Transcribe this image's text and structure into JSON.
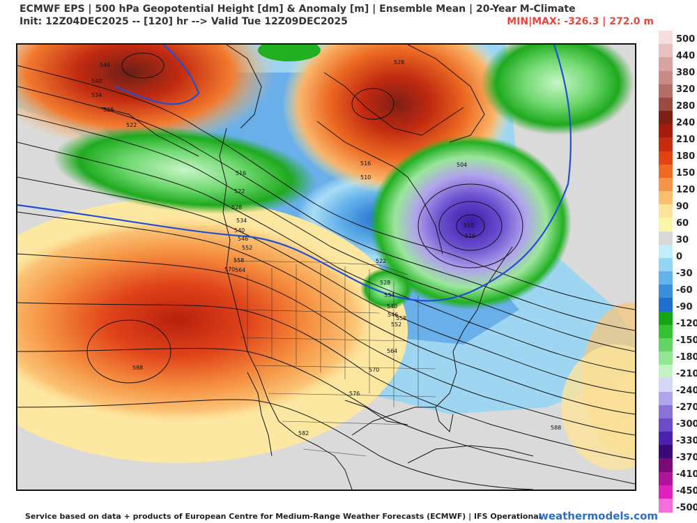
{
  "header": {
    "title": "ECMWF EPS | 500 hPa Geopotential Height [dm] & Anomaly [m] | Ensemble Mean | 20-Year M-Climate",
    "subtitle": "Init: 12Z04DEC2025 -- [120] hr --> Valid Tue 12Z09DEC2025",
    "minmax": "MIN|MAX: -326.3 | 272.0 m"
  },
  "colorbar": {
    "labels": [
      "500",
      "440",
      "380",
      "320",
      "280",
      "240",
      "210",
      "180",
      "150",
      "120",
      "90",
      "60",
      "30",
      "0",
      "-30",
      "-60",
      "-90",
      "-120",
      "-150",
      "-180",
      "-210",
      "-240",
      "-270",
      "-300",
      "-330",
      "-370",
      "-410",
      "-450",
      "-500"
    ],
    "colors": [
      "#f7dede",
      "#e9c0c0",
      "#d8a3a0",
      "#c98a84",
      "#b46e66",
      "#9c4a40",
      "#7e1e14",
      "#a51c0c",
      "#c72c10",
      "#e14412",
      "#f06a22",
      "#f8944a",
      "#fbbf72",
      "#fde49a",
      "#fbf7a6",
      "#d9d9d9",
      "#c2ecf8",
      "#94d4f4",
      "#64b2ea",
      "#3a8edc",
      "#1f6fcf",
      "#14a614",
      "#33c233",
      "#62d562",
      "#93e693",
      "#c3f3c3",
      "#d6d6f6",
      "#b0a4ec",
      "#8a74dc",
      "#6c4ac8",
      "#4a22b0",
      "#3a0a7a",
      "#7a0a78",
      "#b0149a",
      "#e220c0",
      "#f56ed9"
    ]
  },
  "contour_labels": [
    "546",
    "540",
    "534",
    "528",
    "522",
    "516",
    "522",
    "528",
    "534",
    "540",
    "546",
    "552",
    "558",
    "564",
    "570",
    "588",
    "582",
    "576",
    "570",
    "564",
    "558",
    "552",
    "546",
    "540",
    "534",
    "528",
    "522",
    "516",
    "510",
    "504",
    "510",
    "516",
    "528",
    "588"
  ],
  "footer": {
    "credit": "Service based on data + products of European Centre for Medium-Range Weather Forecasts (ECMWF) | IFS Operational",
    "brand": "weathermodels.com"
  }
}
